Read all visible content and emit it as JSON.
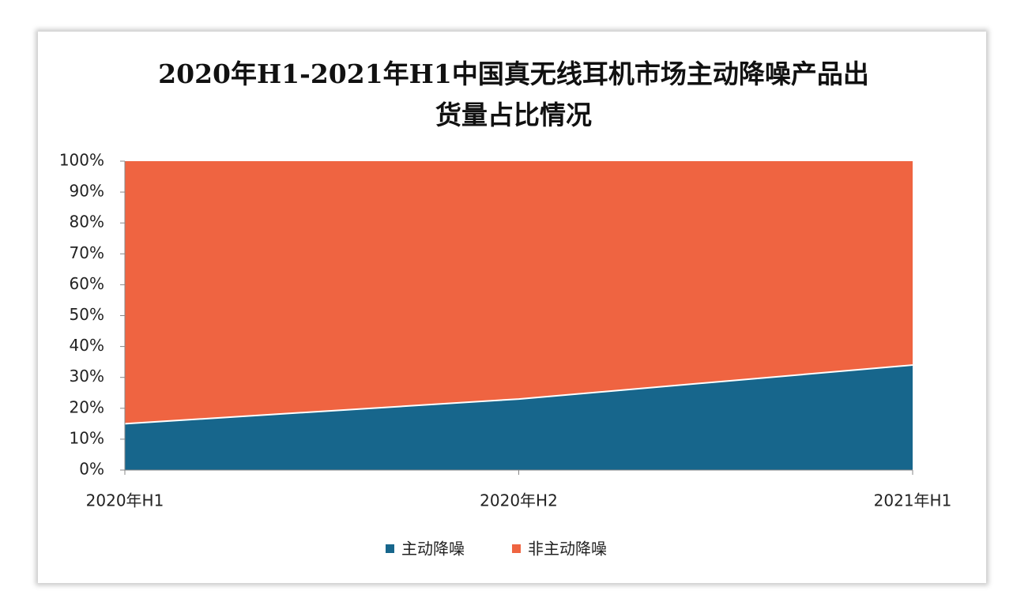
{
  "chart_data": {
    "type": "stacked-area",
    "title": "2020年H1-2021年H1中国真无线耳机市场主动降噪产品出货量占比情况",
    "categories": [
      "2020年H1",
      "2020年H2",
      "2021年H1"
    ],
    "series": [
      {
        "name": "主动降噪",
        "color": "#17668c",
        "values": [
          15,
          23,
          34
        ]
      },
      {
        "name": "非主动降噪",
        "color": "#ef6441",
        "values": [
          85,
          77,
          66
        ]
      }
    ],
    "ylim": [
      0,
      100
    ],
    "yticks": [
      {
        "value": 0,
        "label": "0%"
      },
      {
        "value": 10,
        "label": "10%"
      },
      {
        "value": 20,
        "label": "20%"
      },
      {
        "value": 30,
        "label": "30%"
      },
      {
        "value": 40,
        "label": "40%"
      },
      {
        "value": 50,
        "label": "50%"
      },
      {
        "value": 60,
        "label": "60%"
      },
      {
        "value": 70,
        "label": "70%"
      },
      {
        "value": 80,
        "label": "80%"
      },
      {
        "value": 90,
        "label": "90%"
      },
      {
        "value": 100,
        "label": "100%"
      }
    ],
    "legend": "bottom"
  }
}
